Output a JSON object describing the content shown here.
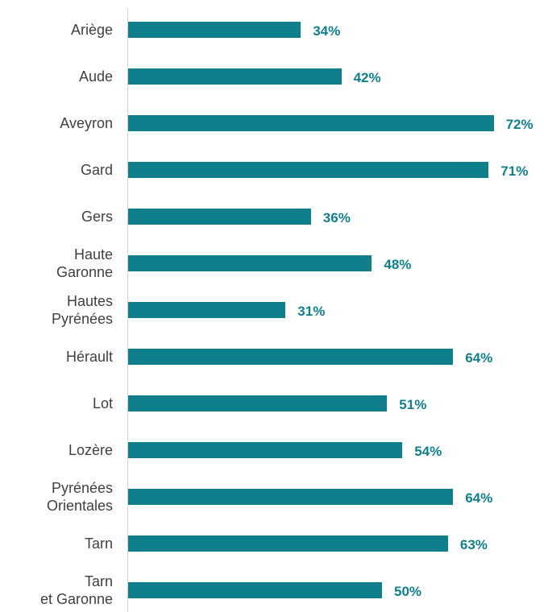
{
  "chart_data": {
    "type": "bar",
    "categories": [
      "Ariège",
      "Aude",
      "Aveyron",
      "Gard",
      "Gers",
      "Haute\nGaronne",
      "Hautes\nPyrénées",
      "Hérault",
      "Lot",
      "Lozère",
      "Pyrénées\nOrientales",
      "Tarn",
      "Tarn\net Garonne"
    ],
    "values": [
      34,
      42,
      72,
      71,
      36,
      48,
      31,
      64,
      51,
      54,
      64,
      63,
      50
    ],
    "value_labels": [
      "34%",
      "42%",
      "72%",
      "71%",
      "36%",
      "48%",
      "31%",
      "64%",
      "51%",
      "54%",
      "64%",
      "63%",
      "50%"
    ],
    "color": "#0f7f8c"
  }
}
